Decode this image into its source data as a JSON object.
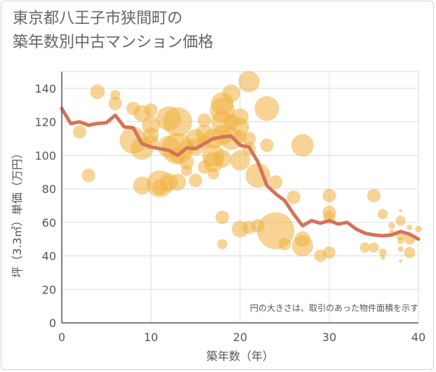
{
  "title_lines": [
    "東京都八王子市狭間町の",
    "築年数別中古マンション価格"
  ],
  "note": "円の大きさは、取引のあった物件面積を示す",
  "colors": {
    "bubble": "#f0b040",
    "line": "#d4735a",
    "grid": "#dddddd",
    "axis": "#555555"
  },
  "chart_data": {
    "type": "scatter",
    "xlabel": "築年数（年）",
    "ylabel": "坪（3.3㎡）単価（万円）",
    "xlim": [
      0,
      40
    ],
    "ylim": [
      0,
      150
    ],
    "x_ticks": [
      0,
      10,
      20,
      30,
      40
    ],
    "y_ticks": [
      0,
      20,
      40,
      60,
      80,
      100,
      120,
      140
    ],
    "grid": true,
    "series": [
      {
        "kind": "bubble",
        "points": [
          {
            "x": 2,
            "y": 114,
            "s": 1.2
          },
          {
            "x": 3,
            "y": 88,
            "s": 1.2
          },
          {
            "x": 4,
            "y": 138,
            "s": 1.3
          },
          {
            "x": 6,
            "y": 136,
            "s": 0.9
          },
          {
            "x": 6,
            "y": 131,
            "s": 1.2
          },
          {
            "x": 8,
            "y": 128,
            "s": 1.2
          },
          {
            "x": 8,
            "y": 109,
            "s": 2.4
          },
          {
            "x": 9,
            "y": 125,
            "s": 1.5
          },
          {
            "x": 9,
            "y": 104,
            "s": 2.0
          },
          {
            "x": 9,
            "y": 82,
            "s": 1.6
          },
          {
            "x": 10,
            "y": 127,
            "s": 1.2
          },
          {
            "x": 10,
            "y": 118,
            "s": 1.6
          },
          {
            "x": 10,
            "y": 112,
            "s": 1.4
          },
          {
            "x": 10,
            "y": 108,
            "s": 1.3
          },
          {
            "x": 11,
            "y": 83,
            "s": 2.4
          },
          {
            "x": 11,
            "y": 81,
            "s": 1.4
          },
          {
            "x": 12,
            "y": 122,
            "s": 2.2
          },
          {
            "x": 12,
            "y": 105,
            "s": 2.0
          },
          {
            "x": 12,
            "y": 84,
            "s": 1.6
          },
          {
            "x": 13,
            "y": 120,
            "s": 2.6
          },
          {
            "x": 13,
            "y": 104,
            "s": 2.8
          },
          {
            "x": 13,
            "y": 84,
            "s": 1.5
          },
          {
            "x": 13,
            "y": 100,
            "s": 1.4
          },
          {
            "x": 14,
            "y": 91,
            "s": 1.0
          },
          {
            "x": 14,
            "y": 96,
            "s": 1.3
          },
          {
            "x": 14,
            "y": 105,
            "s": 1.4
          },
          {
            "x": 15,
            "y": 110,
            "s": 1.7
          },
          {
            "x": 15,
            "y": 105,
            "s": 1.5
          },
          {
            "x": 15,
            "y": 85,
            "s": 1.2
          },
          {
            "x": 16,
            "y": 121,
            "s": 1.2
          },
          {
            "x": 16,
            "y": 113,
            "s": 1.6
          },
          {
            "x": 16,
            "y": 108,
            "s": 1.2
          },
          {
            "x": 16,
            "y": 93,
            "s": 1.2
          },
          {
            "x": 17,
            "y": 110,
            "s": 1.8
          },
          {
            "x": 17,
            "y": 100,
            "s": 2.0
          },
          {
            "x": 17,
            "y": 96,
            "s": 1.8
          },
          {
            "x": 17,
            "y": 89,
            "s": 1.0
          },
          {
            "x": 18,
            "y": 131,
            "s": 2.0
          },
          {
            "x": 18,
            "y": 127,
            "s": 2.2
          },
          {
            "x": 18,
            "y": 120,
            "s": 2.0
          },
          {
            "x": 18,
            "y": 112,
            "s": 1.8
          },
          {
            "x": 18,
            "y": 98,
            "s": 1.6
          },
          {
            "x": 18,
            "y": 63,
            "s": 1.2
          },
          {
            "x": 18,
            "y": 47,
            "s": 0.9
          },
          {
            "x": 19,
            "y": 137,
            "s": 1.6
          },
          {
            "x": 19,
            "y": 120,
            "s": 1.4
          },
          {
            "x": 19,
            "y": 110,
            "s": 2.0
          },
          {
            "x": 20,
            "y": 123,
            "s": 1.5
          },
          {
            "x": 20,
            "y": 117,
            "s": 1.6
          },
          {
            "x": 20,
            "y": 111,
            "s": 1.2
          },
          {
            "x": 20,
            "y": 97,
            "s": 1.8
          },
          {
            "x": 20,
            "y": 56,
            "s": 1.5
          },
          {
            "x": 21,
            "y": 144,
            "s": 1.9
          },
          {
            "x": 21,
            "y": 110,
            "s": 1.2
          },
          {
            "x": 21,
            "y": 104,
            "s": 1.2
          },
          {
            "x": 21,
            "y": 57,
            "s": 1.2
          },
          {
            "x": 22,
            "y": 88,
            "s": 2.2
          },
          {
            "x": 22,
            "y": 58,
            "s": 1.2
          },
          {
            "x": 23,
            "y": 128,
            "s": 2.2
          },
          {
            "x": 23,
            "y": 106,
            "s": 1.2
          },
          {
            "x": 24,
            "y": 84,
            "s": 1.2
          },
          {
            "x": 24,
            "y": 55,
            "s": 3.3
          },
          {
            "x": 25,
            "y": 47,
            "s": 1.1
          },
          {
            "x": 26,
            "y": 75,
            "s": 1.2
          },
          {
            "x": 27,
            "y": 106,
            "s": 2.0
          },
          {
            "x": 27,
            "y": 46,
            "s": 1.9
          },
          {
            "x": 27,
            "y": 50,
            "s": 1.4
          },
          {
            "x": 29,
            "y": 40,
            "s": 1.1
          },
          {
            "x": 30,
            "y": 76,
            "s": 1.2
          },
          {
            "x": 30,
            "y": 66,
            "s": 1.2
          },
          {
            "x": 30,
            "y": 63,
            "s": 1.1
          },
          {
            "x": 30,
            "y": 42,
            "s": 1.1
          },
          {
            "x": 34,
            "y": 45,
            "s": 0.9
          },
          {
            "x": 35,
            "y": 76,
            "s": 1.2
          },
          {
            "x": 35,
            "y": 45,
            "s": 0.9
          },
          {
            "x": 36,
            "y": 65,
            "s": 0.9
          },
          {
            "x": 36,
            "y": 42,
            "s": 0.7
          },
          {
            "x": 36,
            "y": 39,
            "s": 0.4
          },
          {
            "x": 37,
            "y": 58,
            "s": 0.6
          },
          {
            "x": 37,
            "y": 54,
            "s": 0.5
          },
          {
            "x": 38,
            "y": 61,
            "s": 0.9
          },
          {
            "x": 38,
            "y": 52,
            "s": 0.8
          },
          {
            "x": 38,
            "y": 49,
            "s": 0.6
          },
          {
            "x": 38,
            "y": 44,
            "s": 0.5
          },
          {
            "x": 38,
            "y": 67,
            "s": 0.3
          },
          {
            "x": 38,
            "y": 37,
            "s": 0.3
          },
          {
            "x": 39,
            "y": 57,
            "s": 0.5
          },
          {
            "x": 39,
            "y": 50,
            "s": 1.0
          },
          {
            "x": 39,
            "y": 42,
            "s": 1.0
          },
          {
            "x": 40,
            "y": 56,
            "s": 0.6
          }
        ]
      },
      {
        "kind": "line",
        "points": [
          {
            "x": 0,
            "y": 128
          },
          {
            "x": 1,
            "y": 119
          },
          {
            "x": 2,
            "y": 120
          },
          {
            "x": 3,
            "y": 118
          },
          {
            "x": 4,
            "y": 119
          },
          {
            "x": 5,
            "y": 119.5
          },
          {
            "x": 6,
            "y": 124
          },
          {
            "x": 7,
            "y": 117
          },
          {
            "x": 8,
            "y": 116.5
          },
          {
            "x": 9,
            "y": 107
          },
          {
            "x": 10,
            "y": 105
          },
          {
            "x": 11,
            "y": 104
          },
          {
            "x": 12,
            "y": 103
          },
          {
            "x": 13,
            "y": 100
          },
          {
            "x": 14,
            "y": 104.5
          },
          {
            "x": 15,
            "y": 104
          },
          {
            "x": 16,
            "y": 107
          },
          {
            "x": 17,
            "y": 110
          },
          {
            "x": 18,
            "y": 111
          },
          {
            "x": 19,
            "y": 111.5
          },
          {
            "x": 20,
            "y": 106
          },
          {
            "x": 21,
            "y": 105
          },
          {
            "x": 22,
            "y": 96
          },
          {
            "x": 23,
            "y": 82
          },
          {
            "x": 24,
            "y": 77
          },
          {
            "x": 25,
            "y": 73
          },
          {
            "x": 26,
            "y": 65
          },
          {
            "x": 27,
            "y": 58
          },
          {
            "x": 28,
            "y": 61
          },
          {
            "x": 29,
            "y": 59.5
          },
          {
            "x": 30,
            "y": 61
          },
          {
            "x": 31,
            "y": 59
          },
          {
            "x": 32,
            "y": 60
          },
          {
            "x": 33,
            "y": 56
          },
          {
            "x": 34,
            "y": 53.5
          },
          {
            "x": 35,
            "y": 52.5
          },
          {
            "x": 36,
            "y": 52
          },
          {
            "x": 37,
            "y": 52.5
          },
          {
            "x": 38,
            "y": 54.5
          },
          {
            "x": 39,
            "y": 53
          },
          {
            "x": 40,
            "y": 50
          }
        ]
      }
    ]
  }
}
